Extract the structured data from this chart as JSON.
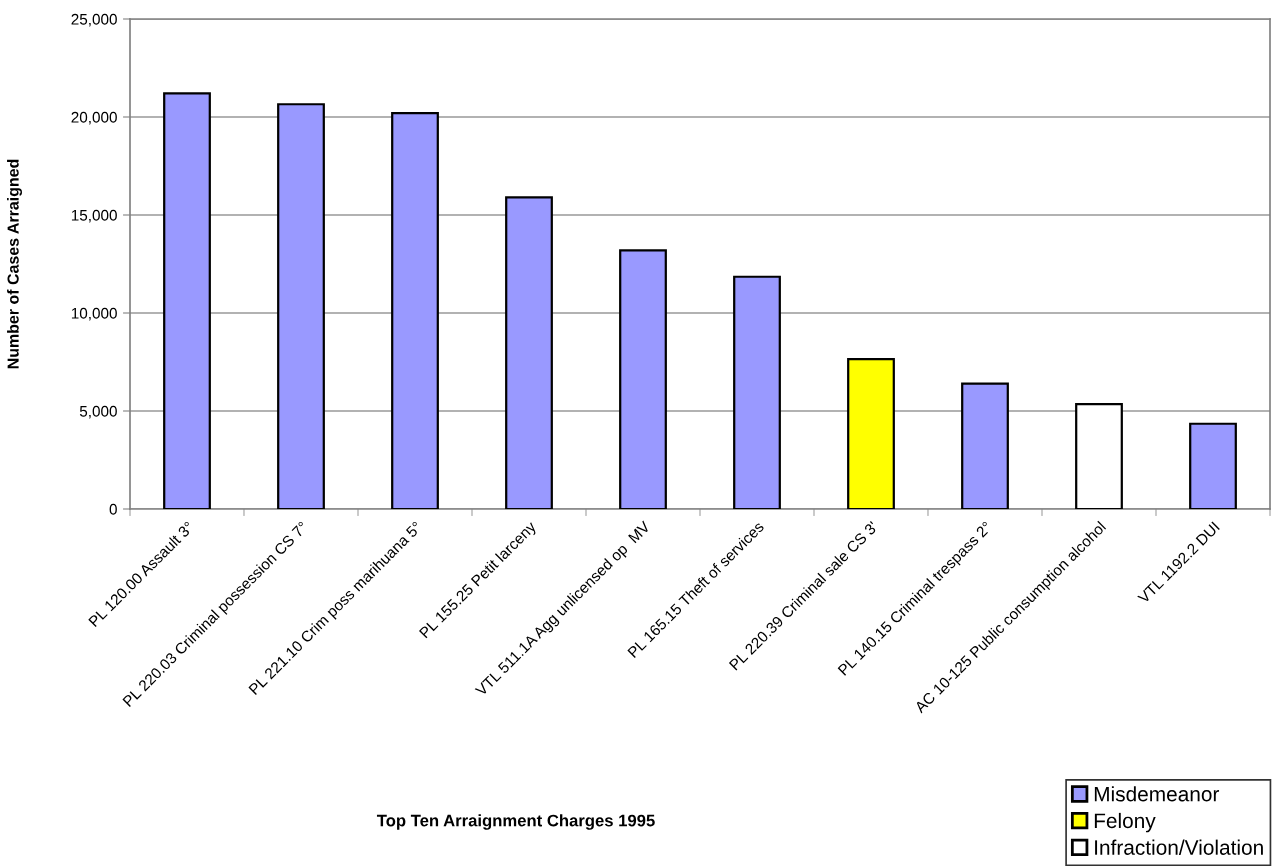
{
  "chart_data": {
    "type": "bar",
    "title": "Top Ten Arraignment Charges 1995",
    "ylabel": "Number of Cases Arraigned",
    "categories": [
      "PL 120.00 Assault 3°",
      "PL 220.03 Criminal possession CS 7°",
      "PL 221.10 Crim poss marihuana 5°",
      "PL 155.25 Petit larceny",
      "VTL 511.1A Agg unlicensed op  MV",
      "PL 165.15 Theft of services",
      "PL 220.39 Criminal sale CS 3'",
      "PL 140.15 Criminal trespass 2°",
      "AC 10-125 Public consumption alcohol",
      "VTL 1192.2 DUI"
    ],
    "stacked": true,
    "series": [
      {
        "name": "Misdemeanor",
        "color": "#9999ff",
        "values": [
          21200,
          20650,
          20200,
          15900,
          13200,
          11850,
          null,
          6400,
          null,
          4350
        ]
      },
      {
        "name": "Felony",
        "color": "#ffff00",
        "values": [
          null,
          null,
          null,
          null,
          null,
          null,
          7650,
          null,
          null,
          null
        ]
      },
      {
        "name": "Infraction/Violation",
        "color": "#ffffff",
        "values": [
          null,
          null,
          null,
          null,
          null,
          null,
          null,
          null,
          5350,
          null
        ]
      }
    ],
    "ylim": [
      0,
      25000
    ],
    "yticks": [
      0,
      {
        "value": 5000,
        "label": "5,000"
      },
      {
        "value": 10000,
        "label": "10,000"
      },
      {
        "value": 15000,
        "label": "15,000"
      },
      {
        "value": 20000,
        "label": "20,000"
      },
      {
        "value": 25000,
        "label": "25,000"
      }
    ],
    "grid": "y",
    "legend": "bottom right"
  }
}
